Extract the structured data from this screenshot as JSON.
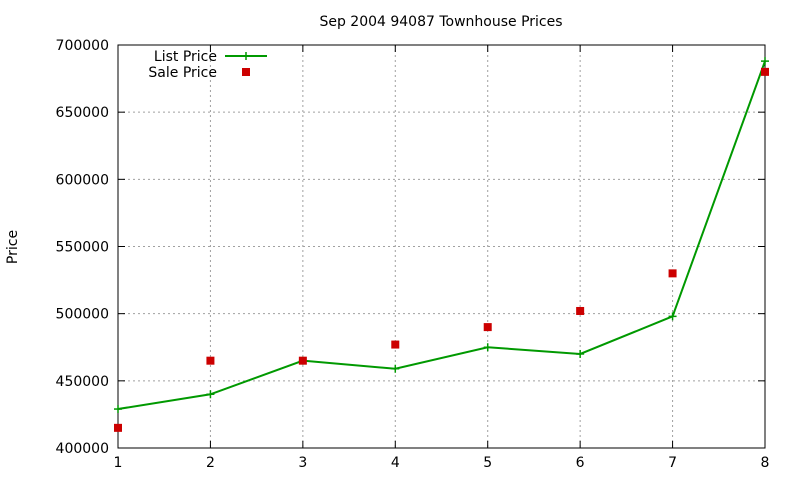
{
  "chart_data": {
    "type": "line",
    "title": "Sep 2004 94087 Townhouse Prices",
    "xlabel": "",
    "ylabel": "Price",
    "x": [
      1,
      2,
      3,
      4,
      5,
      6,
      7,
      8
    ],
    "xlim": [
      1,
      8
    ],
    "ylim": [
      400000,
      700000
    ],
    "yticks": [
      400000,
      450000,
      500000,
      550000,
      600000,
      650000,
      700000
    ],
    "xticks": [
      1,
      2,
      3,
      4,
      5,
      6,
      7,
      8
    ],
    "grid": true,
    "legend_position": "top-left",
    "series": [
      {
        "name": "List Price",
        "style": "line-points",
        "marker": "plus",
        "color": "#009900",
        "values": [
          429000,
          440000,
          465000,
          459000,
          475000,
          470000,
          498000,
          688000
        ]
      },
      {
        "name": "Sale Price",
        "style": "points",
        "marker": "square",
        "color": "#cc0000",
        "values": [
          415000,
          465000,
          465000,
          477000,
          490000,
          502000,
          530000,
          680000
        ]
      }
    ]
  }
}
